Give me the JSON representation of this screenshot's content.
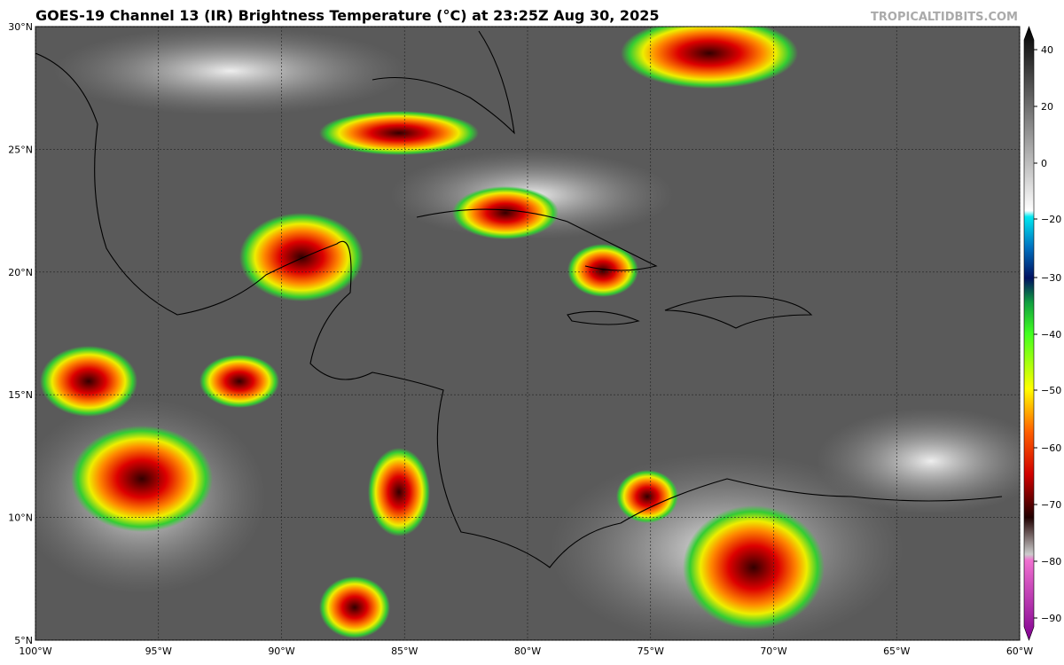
{
  "header": {
    "title": "GOES-19 Channel 13 (IR) Brightness Temperature (°C) at 23:25Z Aug 30, 2025",
    "credit": "TROPICALTIDBITS.COM"
  },
  "map": {
    "lon_labels": [
      "100°W",
      "95°W",
      "90°W",
      "85°W",
      "80°W",
      "75°W",
      "70°W",
      "65°W",
      "60°W"
    ],
    "lat_labels": [
      "30°N",
      "25°N",
      "20°N",
      "15°N",
      "10°N",
      "5°N"
    ]
  },
  "colorbar": {
    "labels": [
      "40",
      "20",
      "0",
      "−20",
      "−30",
      "−40",
      "−50",
      "−60",
      "−70",
      "−80",
      "−90"
    ]
  }
}
